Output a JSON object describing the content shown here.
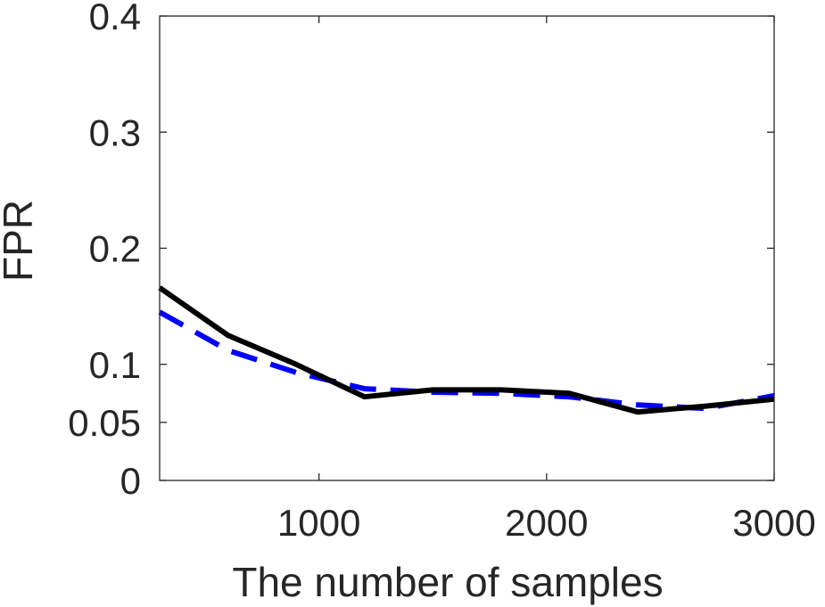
{
  "chart_data": {
    "type": "line",
    "xlabel": "The number of samples",
    "ylabel": "FPR",
    "xlim": [
      300,
      3000
    ],
    "ylim": [
      0,
      0.4
    ],
    "x_ticks": [
      1000,
      2000,
      3000
    ],
    "x_tick_labels": [
      "1000",
      "2000",
      "3000"
    ],
    "y_ticks": [
      0,
      0.05,
      0.1,
      0.2,
      0.3,
      0.4
    ],
    "y_tick_labels": [
      "0",
      "0.05",
      "0.1",
      "0.2",
      "0.3",
      "0.4"
    ],
    "grid": false,
    "x": [
      300,
      600,
      900,
      1200,
      1500,
      1800,
      2100,
      2400,
      2700,
      3000
    ],
    "series": [
      {
        "style": "dashed",
        "color": "#0000ff",
        "values": [
          0.145,
          0.112,
          0.093,
          0.079,
          0.076,
          0.075,
          0.072,
          0.065,
          0.062,
          0.073
        ]
      },
      {
        "style": "solid",
        "color": "#000000",
        "values": [
          0.166,
          0.125,
          0.1,
          0.072,
          0.078,
          0.078,
          0.075,
          0.059,
          0.064,
          0.07
        ]
      }
    ]
  }
}
